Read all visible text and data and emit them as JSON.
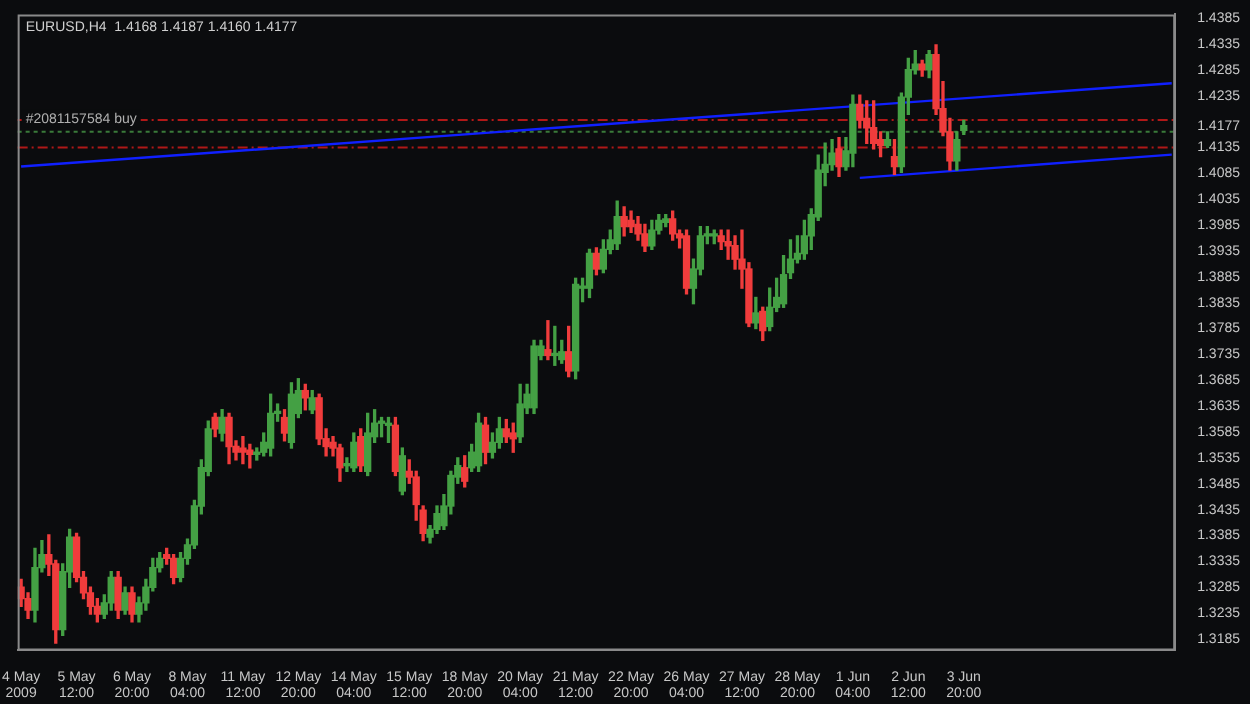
{
  "chart_data": {
    "type": "candlestick",
    "title": "EURUSD,H4  1.4168 1.4187 1.4160 1.4177",
    "categories": [
      "4 May 2009",
      null,
      null,
      null,
      null,
      null,
      null,
      null,
      "5 May 12:00",
      null,
      null,
      null,
      null,
      null,
      null,
      null,
      "6 May 20:00",
      null,
      null,
      null,
      null,
      null,
      null,
      null,
      "8 May 04:00",
      null,
      null,
      null,
      null,
      null,
      null,
      null,
      "11 May 12:00",
      null,
      null,
      null,
      null,
      null,
      null,
      null,
      "12 May 20:00",
      null,
      null,
      null,
      null,
      null,
      null,
      null,
      "14 May 04:00",
      null,
      null,
      null,
      null,
      null,
      null,
      null,
      "15 May 12:00",
      null,
      null,
      null,
      null,
      null,
      null,
      null,
      "18 May 20:00",
      null,
      null,
      null,
      null,
      null,
      null,
      null,
      "20 May 04:00",
      null,
      null,
      null,
      null,
      null,
      null,
      null,
      "21 May 12:00",
      null,
      null,
      null,
      null,
      null,
      null,
      null,
      "22 May 20:00",
      null,
      null,
      null,
      null,
      null,
      null,
      null,
      "26 May 04:00",
      null,
      null,
      null,
      null,
      null,
      null,
      null,
      "27 May 12:00",
      null,
      null,
      null,
      null,
      null,
      null,
      null,
      "28 May 20:00",
      null,
      null,
      null,
      null,
      null,
      null,
      null,
      "1 Jun 04:00",
      null,
      null,
      null,
      null,
      null,
      null,
      null,
      "2 Jun 12:00",
      null,
      null,
      null,
      null,
      null,
      null,
      null,
      "3 Jun 20:00",
      null,
      null,
      null,
      null,
      null,
      null,
      null,
      null,
      null,
      null,
      null,
      null,
      null,
      null,
      null,
      null,
      null,
      null,
      null,
      null,
      null,
      null,
      null,
      null,
      null,
      null,
      null,
      null,
      null,
      null
    ],
    "ohlc": [
      [
        1.3285,
        1.33,
        1.3248,
        1.3263
      ],
      [
        1.3263,
        1.3274,
        1.3225,
        1.3241
      ],
      [
        1.3241,
        1.336,
        1.3218,
        1.3323
      ],
      [
        1.3323,
        1.3375,
        1.3315,
        1.3348
      ],
      [
        1.3348,
        1.3386,
        1.3308,
        1.333
      ],
      [
        1.333,
        1.3337,
        1.3177,
        1.3203
      ],
      [
        1.3203,
        1.333,
        1.3192,
        1.3315
      ],
      [
        1.3315,
        1.3397,
        1.3285,
        1.3382
      ],
      [
        1.3382,
        1.3389,
        1.3296,
        1.3304
      ],
      [
        1.3304,
        1.3315,
        1.3263,
        1.3274
      ],
      [
        1.3274,
        1.3285,
        1.3233,
        1.3248
      ],
      [
        1.3248,
        1.3263,
        1.3218,
        1.3233
      ],
      [
        1.3233,
        1.327,
        1.3225,
        1.3255
      ],
      [
        1.3255,
        1.3315,
        1.3241,
        1.3304
      ],
      [
        1.3304,
        1.3315,
        1.3225,
        1.3241
      ],
      [
        1.3241,
        1.3285,
        1.3233,
        1.3274
      ],
      [
        1.3274,
        1.3285,
        1.3218,
        1.3233
      ],
      [
        1.3233,
        1.3266,
        1.3218,
        1.3255
      ],
      [
        1.3255,
        1.33,
        1.3241,
        1.3285
      ],
      [
        1.3285,
        1.3341,
        1.3278,
        1.3323
      ],
      [
        1.3323,
        1.3352,
        1.3315,
        1.3341
      ],
      [
        1.3348,
        1.336,
        1.333,
        1.3341
      ],
      [
        1.3341,
        1.3348,
        1.3292,
        1.3304
      ],
      [
        1.3304,
        1.3352,
        1.3296,
        1.3341
      ],
      [
        1.3341,
        1.3378,
        1.333,
        1.3367
      ],
      [
        1.3367,
        1.3453,
        1.336,
        1.3442
      ],
      [
        1.3442,
        1.3531,
        1.3427,
        1.3516
      ],
      [
        1.3509,
        1.3606,
        1.3501,
        1.3591
      ],
      [
        1.3613,
        1.3621,
        1.3576,
        1.3591
      ],
      [
        1.3583,
        1.3628,
        1.3568,
        1.3613
      ],
      [
        1.3613,
        1.3621,
        1.3524,
        1.3557
      ],
      [
        1.3557,
        1.3568,
        1.3531,
        1.3546
      ],
      [
        1.3554,
        1.3576,
        1.3524,
        1.3546
      ],
      [
        1.355,
        1.3561,
        1.3516,
        1.3542
      ],
      [
        1.3542,
        1.3554,
        1.3531,
        1.3542
      ],
      [
        1.3546,
        1.3583,
        1.3539,
        1.3565
      ],
      [
        1.3554,
        1.3658,
        1.3539,
        1.3621
      ],
      [
        1.3621,
        1.3639,
        1.3606,
        1.3621
      ],
      [
        1.3613,
        1.3628,
        1.3568,
        1.3583
      ],
      [
        1.3565,
        1.368,
        1.3554,
        1.3658
      ],
      [
        1.3621,
        1.3688,
        1.3613,
        1.3665
      ],
      [
        1.3665,
        1.3677,
        1.3628,
        1.3651
      ],
      [
        1.3628,
        1.3665,
        1.3621,
        1.3651
      ],
      [
        1.3651,
        1.3658,
        1.3561,
        1.3572
      ],
      [
        1.3572,
        1.3591,
        1.3539,
        1.3557
      ],
      [
        1.3565,
        1.3576,
        1.3539,
        1.3554
      ],
      [
        1.3554,
        1.3561,
        1.349,
        1.3516
      ],
      [
        1.352,
        1.3535,
        1.3509,
        1.352
      ],
      [
        1.3516,
        1.3583,
        1.3509,
        1.3565
      ],
      [
        1.3576,
        1.3591,
        1.3509,
        1.352
      ],
      [
        1.3509,
        1.3621,
        1.3501,
        1.3583
      ],
      [
        1.3576,
        1.3628,
        1.3565,
        1.3602
      ],
      [
        1.3602,
        1.3613,
        1.3576,
        1.3602
      ],
      [
        1.3598,
        1.3613,
        1.3565,
        1.3598
      ],
      [
        1.3598,
        1.3613,
        1.3501,
        1.3509
      ],
      [
        1.3471,
        1.3554,
        1.3464,
        1.3539
      ],
      [
        1.3509,
        1.3531,
        1.3486,
        1.3498
      ],
      [
        1.3498,
        1.3509,
        1.3415,
        1.3445
      ],
      [
        1.3434,
        1.3442,
        1.3375,
        1.3389
      ],
      [
        1.3382,
        1.3404,
        1.3371,
        1.3397
      ],
      [
        1.3397,
        1.3442,
        1.3389,
        1.3427
      ],
      [
        1.3404,
        1.3464,
        1.3397,
        1.3442
      ],
      [
        1.3442,
        1.3509,
        1.3427,
        1.3501
      ],
      [
        1.3498,
        1.3535,
        1.3486,
        1.352
      ],
      [
        1.3516,
        1.3539,
        1.3479,
        1.349
      ],
      [
        1.3516,
        1.3561,
        1.3509,
        1.3546
      ],
      [
        1.352,
        1.3621,
        1.3509,
        1.3602
      ],
      [
        1.3598,
        1.3613,
        1.3524,
        1.3546
      ],
      [
        1.3546,
        1.3583,
        1.3535,
        1.3565
      ],
      [
        1.3565,
        1.3613,
        1.3554,
        1.3591
      ],
      [
        1.3591,
        1.3609,
        1.3565,
        1.3576
      ],
      [
        1.3583,
        1.3602,
        1.3546,
        1.3572
      ],
      [
        1.3576,
        1.3677,
        1.3565,
        1.3639
      ],
      [
        1.3632,
        1.3677,
        1.3621,
        1.3658
      ],
      [
        1.3632,
        1.3762,
        1.3621,
        1.3751
      ],
      [
        1.3733,
        1.3762,
        1.3725,
        1.3751
      ],
      [
        1.3744,
        1.38,
        1.3725,
        1.3733
      ],
      [
        1.3733,
        1.3789,
        1.3714,
        1.3733
      ],
      [
        1.3725,
        1.3762,
        1.3718,
        1.374
      ],
      [
        1.374,
        1.3789,
        1.3692,
        1.3703
      ],
      [
        1.3703,
        1.3882,
        1.3688,
        1.387
      ],
      [
        1.3863,
        1.3882,
        1.3837,
        1.3863
      ],
      [
        1.3863,
        1.3938,
        1.3845,
        1.393
      ],
      [
        1.393,
        1.3941,
        1.3889,
        1.39
      ],
      [
        1.39,
        1.3956,
        1.3893,
        1.3938
      ],
      [
        1.3938,
        1.3975,
        1.393,
        1.3956
      ],
      [
        1.3949,
        1.4031,
        1.3938,
        1.4001
      ],
      [
        1.4001,
        1.402,
        1.3964,
        1.3982
      ],
      [
        1.3994,
        1.4012,
        1.3971,
        1.3982
      ],
      [
        1.3986,
        1.4001,
        1.3956,
        1.3968
      ],
      [
        1.3968,
        1.3986,
        1.3934,
        1.3945
      ],
      [
        1.3945,
        1.3994,
        1.3938,
        1.3975
      ],
      [
        1.3975,
        1.4005,
        1.3968,
        1.3994
      ],
      [
        1.399,
        1.4005,
        1.3982,
        1.3997
      ],
      [
        1.3997,
        1.4012,
        1.3956,
        1.3968
      ],
      [
        1.3968,
        1.3975,
        1.3941,
        1.396
      ],
      [
        1.3964,
        1.3975,
        1.3852,
        1.3863
      ],
      [
        1.3863,
        1.3919,
        1.3833,
        1.39
      ],
      [
        1.39,
        1.3982,
        1.3889,
        1.3964
      ],
      [
        1.3964,
        1.3982,
        1.3949,
        1.3964
      ],
      [
        1.3964,
        1.3975,
        1.3949,
        1.3964
      ],
      [
        1.3964,
        1.3975,
        1.3938,
        1.3953
      ],
      [
        1.3953,
        1.3975,
        1.3919,
        1.3945
      ],
      [
        1.3945,
        1.3964,
        1.39,
        1.3919
      ],
      [
        1.3919,
        1.3975,
        1.3863,
        1.39
      ],
      [
        1.39,
        1.3912,
        1.3789,
        1.3796
      ],
      [
        1.3796,
        1.3845,
        1.3785,
        1.3815
      ],
      [
        1.3818,
        1.3826,
        1.3762,
        1.3781
      ],
      [
        1.3789,
        1.3863,
        1.3781,
        1.3826
      ],
      [
        1.3826,
        1.3882,
        1.3818,
        1.3845
      ],
      [
        1.3833,
        1.3926,
        1.3826,
        1.3889
      ],
      [
        1.3893,
        1.3956,
        1.3882,
        1.3919
      ],
      [
        1.3919,
        1.3964,
        1.3912,
        1.393
      ],
      [
        1.393,
        1.3994,
        1.3919,
        1.3964
      ],
      [
        1.3964,
        1.4016,
        1.3938,
        1.4005
      ],
      [
        1.4001,
        1.412,
        1.3994,
        1.4091
      ],
      [
        1.4087,
        1.4143,
        1.4061,
        1.4102
      ],
      [
        1.4102,
        1.415,
        1.4091,
        1.4124
      ],
      [
        1.4132,
        1.4154,
        1.4079,
        1.4098
      ],
      [
        1.4098,
        1.4154,
        1.4091,
        1.4128
      ],
      [
        1.4124,
        1.4236,
        1.4098,
        1.4218
      ],
      [
        1.4218,
        1.4236,
        1.4173,
        1.4188
      ],
      [
        1.4191,
        1.4225,
        1.4143,
        1.4173
      ],
      [
        1.4173,
        1.4225,
        1.4132,
        1.4143
      ],
      [
        1.415,
        1.4165,
        1.4117,
        1.4139
      ],
      [
        1.4139,
        1.4165,
        1.4135,
        1.415
      ],
      [
        1.4117,
        1.415,
        1.4083,
        1.4098
      ],
      [
        1.4098,
        1.424,
        1.4087,
        1.4232
      ],
      [
        1.4232,
        1.4307,
        1.4199,
        1.4285
      ],
      [
        1.4285,
        1.4322,
        1.4277,
        1.4296
      ],
      [
        1.4296,
        1.4303,
        1.4273,
        1.4285
      ],
      [
        1.4285,
        1.4322,
        1.427,
        1.4314
      ],
      [
        1.4314,
        1.4333,
        1.4199,
        1.421
      ],
      [
        1.421,
        1.4262,
        1.4158,
        1.4165
      ],
      [
        1.4165,
        1.4191,
        1.4091,
        1.4109
      ],
      [
        1.4109,
        1.4165,
        1.4091,
        1.415
      ],
      [
        1.4168,
        1.4187,
        1.416,
        1.4177
      ],
      null,
      null,
      null,
      null,
      null,
      null,
      null,
      null,
      null,
      null,
      null,
      null,
      null,
      null,
      null,
      null,
      null,
      null,
      null,
      null,
      null,
      null,
      null,
      null,
      null,
      null,
      null,
      null,
      null,
      null
    ],
    "colors": [
      "#f03c3c",
      "#f03c3c",
      "#44a044",
      "#44a044",
      "#f03c3c",
      "#f03c3c",
      "#44a044",
      "#44a044",
      "#f03c3c",
      "#f03c3c",
      "#f03c3c",
      "#f03c3c",
      "#44a044",
      "#44a044",
      "#f03c3c",
      "#44a044",
      "#f03c3c",
      "#44a044",
      "#44a044",
      "#44a044",
      "#44a044",
      "#f03c3c",
      "#f03c3c",
      "#44a044",
      "#44a044",
      "#44a044",
      "#44a044",
      "#44a044",
      "#f03c3c",
      "#44a044",
      "#f03c3c",
      "#f03c3c",
      "#f03c3c",
      "#f03c3c",
      "#44a044",
      "#44a044",
      "#44a044",
      "#44a044",
      "#f03c3c",
      "#44a044",
      "#44a044",
      "#f03c3c",
      "#44a044",
      "#f03c3c",
      "#f03c3c",
      "#f03c3c",
      "#f03c3c",
      "#44a044",
      "#44a044",
      "#f03c3c",
      "#44a044",
      "#44a044",
      "#44a044",
      "#44a044",
      "#f03c3c",
      "#44a044",
      "#f03c3c",
      "#f03c3c",
      "#f03c3c",
      "#44a044",
      "#44a044",
      "#44a044",
      "#44a044",
      "#44a044",
      "#f03c3c",
      "#44a044",
      "#44a044",
      "#f03c3c",
      "#44a044",
      "#44a044",
      "#f03c3c",
      "#f03c3c",
      "#44a044",
      "#44a044",
      "#44a044",
      "#44a044",
      "#f03c3c",
      "#44a044",
      "#44a044",
      "#f03c3c",
      "#44a044",
      "#44a044",
      "#44a044",
      "#f03c3c",
      "#44a044",
      "#44a044",
      "#44a044",
      "#f03c3c",
      "#f03c3c",
      "#f03c3c",
      "#f03c3c",
      "#44a044",
      "#44a044",
      "#44a044",
      "#f03c3c",
      "#f03c3c",
      "#f03c3c",
      "#44a044",
      "#44a044",
      "#44a044",
      "#44a044",
      "#f03c3c",
      "#f03c3c",
      "#f03c3c",
      "#f03c3c",
      "#f03c3c",
      "#44a044",
      "#f03c3c",
      "#44a044",
      "#44a044",
      "#44a044",
      "#44a044",
      "#44a044",
      "#44a044",
      "#44a044",
      "#44a044",
      "#44a044",
      "#44a044",
      "#f03c3c",
      "#44a044",
      "#44a044",
      "#f03c3c",
      "#f03c3c",
      "#f03c3c",
      "#f03c3c",
      "#44a044",
      "#f03c3c",
      "#44a044",
      "#44a044",
      "#44a044",
      "#f03c3c",
      "#44a044",
      "#f03c3c",
      "#f03c3c",
      "#f03c3c",
      "#44a044",
      "#44a044",
      null,
      null,
      null,
      null,
      null,
      null,
      null,
      null,
      null,
      null,
      null,
      null,
      null,
      null,
      null,
      null,
      null,
      null,
      null,
      null,
      null,
      null,
      null,
      null,
      null,
      null,
      null,
      null,
      null,
      null
    ],
    "series": [
      {
        "type": "line",
        "color": "#1020ff",
        "values": [
          1.4098,
          null,
          null,
          null,
          null,
          null,
          null,
          null,
          null,
          null,
          null,
          null,
          null,
          null,
          null,
          null,
          null,
          null,
          null,
          null,
          null,
          null,
          null,
          null,
          null,
          null,
          null,
          null,
          null,
          null,
          null,
          null,
          null,
          null,
          null,
          null,
          null,
          null,
          null,
          null,
          null,
          null,
          null,
          null,
          null,
          null,
          null,
          null,
          null,
          null,
          null,
          null,
          null,
          null,
          null,
          null,
          null,
          null,
          null,
          null,
          null,
          null,
          null,
          null,
          null,
          null,
          null,
          null,
          null,
          null,
          null,
          null,
          null,
          null,
          null,
          null,
          null,
          null,
          null,
          null,
          null,
          null,
          null,
          null,
          null,
          null,
          null,
          null,
          null,
          null,
          null,
          null,
          null,
          null,
          null,
          null,
          null,
          null,
          null,
          null,
          null,
          null,
          null,
          null,
          null,
          null,
          null,
          null,
          null,
          null,
          null,
          null,
          null,
          null,
          null,
          null,
          null,
          null,
          null,
          null,
          null,
          null,
          null,
          null,
          null,
          null,
          null,
          null,
          null,
          null,
          null,
          null,
          null,
          null,
          null,
          null,
          null,
          null,
          null,
          null,
          null,
          null,
          null,
          null,
          null,
          null,
          null,
          null,
          null,
          null,
          null,
          null,
          null,
          null,
          null,
          null,
          null,
          null,
          null,
          null,
          null,
          null,
          null,
          null,
          null,
          null,
          1.4259
        ]
      },
      {
        "type": "line",
        "color": "#1020ff",
        "values": [
          null,
          null,
          null,
          null,
          null,
          null,
          null,
          null,
          null,
          null,
          null,
          null,
          null,
          null,
          null,
          null,
          null,
          null,
          null,
          null,
          null,
          null,
          null,
          null,
          null,
          null,
          null,
          null,
          null,
          null,
          null,
          null,
          null,
          null,
          null,
          null,
          null,
          null,
          null,
          null,
          null,
          null,
          null,
          null,
          null,
          null,
          null,
          null,
          null,
          null,
          null,
          null,
          null,
          null,
          null,
          null,
          null,
          null,
          null,
          null,
          null,
          null,
          null,
          null,
          null,
          null,
          null,
          null,
          null,
          null,
          null,
          null,
          null,
          null,
          null,
          null,
          null,
          null,
          null,
          null,
          null,
          null,
          null,
          null,
          null,
          null,
          null,
          null,
          null,
          null,
          null,
          null,
          null,
          null,
          null,
          null,
          null,
          null,
          null,
          null,
          null,
          null,
          null,
          null,
          null,
          null,
          null,
          null,
          null,
          null,
          null,
          null,
          null,
          null,
          null,
          null,
          null,
          null,
          null,
          null,
          null,
          1.4076,
          null,
          null,
          null,
          null,
          null,
          null,
          null,
          null,
          null,
          null,
          null,
          null,
          null,
          null,
          null,
          null,
          null,
          null,
          null,
          null,
          null,
          null,
          null,
          null,
          null,
          null,
          null,
          null,
          null,
          null,
          null,
          null,
          null,
          null,
          null,
          null,
          null,
          null,
          null,
          null,
          null,
          null,
          null,
          null,
          1.4121
        ]
      }
    ],
    "ref_lines": [
      {
        "axis": "y",
        "value": 1.4188,
        "color": "#b01818",
        "line_style": "dashed"
      },
      {
        "axis": "y",
        "value": 1.4165,
        "label": "#2081157584 buy",
        "color": "#3a7a3a",
        "line_style": "dotted"
      },
      {
        "axis": "y",
        "value": 1.4135,
        "color": "#b01818",
        "line_style": "dashed"
      }
    ],
    "ylim": [
      1.3163,
      1.4392
    ],
    "yticks": [
      1.4385,
      1.4335,
      1.4285,
      1.4235,
      1.4177,
      1.4135,
      1.4085,
      1.4035,
      1.3985,
      1.3935,
      1.3885,
      1.3835,
      1.3785,
      1.3735,
      1.3685,
      1.3635,
      1.3585,
      1.3535,
      1.3485,
      1.3435,
      1.3385,
      1.3335,
      1.3285,
      1.3235,
      1.3185
    ],
    "grid": false,
    "legend": false
  }
}
